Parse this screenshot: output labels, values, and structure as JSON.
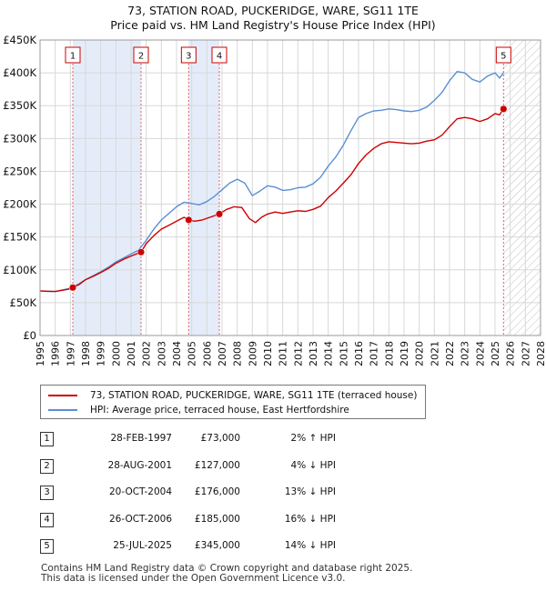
{
  "chart_data": {
    "type": "line",
    "title": "73, STATION ROAD, PUCKERIDGE, WARE, SG11 1TE",
    "subtitle": "Price paid vs. HM Land Registry's House Price Index (HPI)",
    "xlim": [
      1995,
      2028
    ],
    "ylim": [
      0,
      450000
    ],
    "x_ticks": [
      "1995",
      "1996",
      "1997",
      "1998",
      "1999",
      "2000",
      "2001",
      "2002",
      "2003",
      "2004",
      "2005",
      "2006",
      "2007",
      "2008",
      "2009",
      "2010",
      "2011",
      "2012",
      "2013",
      "2014",
      "2015",
      "2016",
      "2017",
      "2018",
      "2019",
      "2020",
      "2021",
      "2022",
      "2023",
      "2024",
      "2025",
      "2026",
      "2027",
      "2028"
    ],
    "y_ticks": [
      {
        "value": 0,
        "label": "£0"
      },
      {
        "value": 50000,
        "label": "£50K"
      },
      {
        "value": 100000,
        "label": "£100K"
      },
      {
        "value": 150000,
        "label": "£150K"
      },
      {
        "value": 200000,
        "label": "£200K"
      },
      {
        "value": 250000,
        "label": "£250K"
      },
      {
        "value": 300000,
        "label": "£300K"
      },
      {
        "value": 350000,
        "label": "£350K"
      },
      {
        "value": 400000,
        "label": "£400K"
      },
      {
        "value": 450000,
        "label": "£450K"
      }
    ],
    "grid": true,
    "legend_position": "below",
    "shaded_periods": [
      [
        1997.16,
        2001.66
      ],
      [
        2004.8,
        2006.82
      ]
    ],
    "future_hatch_from": 2025.56,
    "series": [
      {
        "name": "73, STATION ROAD, PUCKERIDGE, WARE, SG11 1TE (terraced house)",
        "color": "#cc0000",
        "x": [
          1995.0,
          1995.5,
          1996.0,
          1996.5,
          1997.0,
          1997.16,
          1997.6,
          1998.0,
          1998.5,
          1999.0,
          1999.5,
          2000.0,
          2000.5,
          2001.0,
          2001.66,
          2002.0,
          2002.5,
          2003.0,
          2003.5,
          2004.0,
          2004.5,
          2004.8,
          2005.2,
          2005.7,
          2006.2,
          2006.82,
          2007.3,
          2007.8,
          2008.3,
          2008.8,
          2009.2,
          2009.6,
          2010.0,
          2010.5,
          2011.0,
          2011.5,
          2012.0,
          2012.5,
          2013.0,
          2013.5,
          2014.0,
          2014.5,
          2015.0,
          2015.5,
          2016.0,
          2016.5,
          2017.0,
          2017.5,
          2018.0,
          2018.5,
          2019.0,
          2019.5,
          2020.0,
          2020.5,
          2021.0,
          2021.5,
          2022.0,
          2022.5,
          2023.0,
          2023.5,
          2024.0,
          2024.5,
          2025.0,
          2025.3,
          2025.56
        ],
        "values": [
          68000,
          67500,
          67000,
          69000,
          71000,
          73000,
          78000,
          85000,
          90000,
          96000,
          102000,
          110000,
          116000,
          121000,
          127000,
          140000,
          152000,
          162000,
          168000,
          174000,
          180000,
          176000,
          174000,
          176000,
          180000,
          185000,
          192000,
          196000,
          195000,
          178000,
          172000,
          180000,
          185000,
          188000,
          186000,
          188000,
          190000,
          189000,
          192000,
          197000,
          210000,
          220000,
          232000,
          245000,
          262000,
          275000,
          285000,
          292000,
          295000,
          294000,
          293000,
          292000,
          293000,
          296000,
          298000,
          305000,
          318000,
          330000,
          332000,
          330000,
          326000,
          330000,
          338000,
          336000,
          345000
        ]
      },
      {
        "name": "HPI: Average price, terraced house, East Hertfordshire",
        "color": "#5b8fd4",
        "x": [
          1995.0,
          1995.5,
          1996.0,
          1996.5,
          1997.0,
          1997.5,
          1998.0,
          1998.5,
          1999.0,
          1999.5,
          2000.0,
          2000.5,
          2001.0,
          2001.5,
          2002.0,
          2002.5,
          2003.0,
          2003.5,
          2004.0,
          2004.5,
          2005.0,
          2005.5,
          2006.0,
          2006.5,
          2007.0,
          2007.5,
          2008.0,
          2008.5,
          2009.0,
          2009.5,
          2010.0,
          2010.5,
          2011.0,
          2011.5,
          2012.0,
          2012.5,
          2013.0,
          2013.5,
          2014.0,
          2014.5,
          2015.0,
          2015.5,
          2016.0,
          2016.5,
          2017.0,
          2017.5,
          2018.0,
          2018.5,
          2019.0,
          2019.5,
          2020.0,
          2020.5,
          2021.0,
          2021.5,
          2022.0,
          2022.5,
          2023.0,
          2023.5,
          2024.0,
          2024.5,
          2025.0,
          2025.3,
          2025.56
        ],
        "values": [
          68000,
          67000,
          67000,
          69500,
          72000,
          78000,
          85000,
          91000,
          97000,
          104000,
          112000,
          118000,
          124000,
          130000,
          145000,
          162000,
          176000,
          186000,
          196000,
          203000,
          201000,
          199000,
          204000,
          212000,
          222000,
          232000,
          238000,
          232000,
          213000,
          220000,
          228000,
          226000,
          221000,
          222000,
          225000,
          226000,
          231000,
          241000,
          258000,
          272000,
          290000,
          312000,
          332000,
          338000,
          342000,
          343000,
          345000,
          344000,
          342000,
          341000,
          343000,
          348000,
          358000,
          370000,
          388000,
          402000,
          400000,
          390000,
          386000,
          395000,
          400000,
          392000,
          400000
        ]
      }
    ],
    "markers": [
      {
        "label": "1",
        "x": 1997.16,
        "value": 73000
      },
      {
        "label": "2",
        "x": 2001.66,
        "value": 127000
      },
      {
        "label": "3",
        "x": 2004.8,
        "value": 176000
      },
      {
        "label": "4",
        "x": 2006.82,
        "value": 185000
      },
      {
        "label": "5",
        "x": 2025.56,
        "value": 345000
      }
    ]
  },
  "legend": {
    "property_label": "73, STATION ROAD, PUCKERIDGE, WARE, SG11 1TE (terraced house)",
    "hpi_label": "HPI: Average price, terraced house, East Hertfordshire",
    "property_color": "#cc0000",
    "hpi_color": "#5b8fd4"
  },
  "transactions": [
    {
      "num": "1",
      "date": "28-FEB-1997",
      "price": "£73,000",
      "hpi": "2% ↑ HPI"
    },
    {
      "num": "2",
      "date": "28-AUG-2001",
      "price": "£127,000",
      "hpi": "4% ↓ HPI"
    },
    {
      "num": "3",
      "date": "20-OCT-2004",
      "price": "£176,000",
      "hpi": "13% ↓ HPI"
    },
    {
      "num": "4",
      "date": "26-OCT-2006",
      "price": "£185,000",
      "hpi": "16% ↓ HPI"
    },
    {
      "num": "5",
      "date": "25-JUL-2025",
      "price": "£345,000",
      "hpi": "14% ↓ HPI"
    }
  ],
  "footer": {
    "line1": "Contains HM Land Registry data © Crown copyright and database right 2025.",
    "line2": "This data is licensed under the Open Government Licence v3.0."
  }
}
